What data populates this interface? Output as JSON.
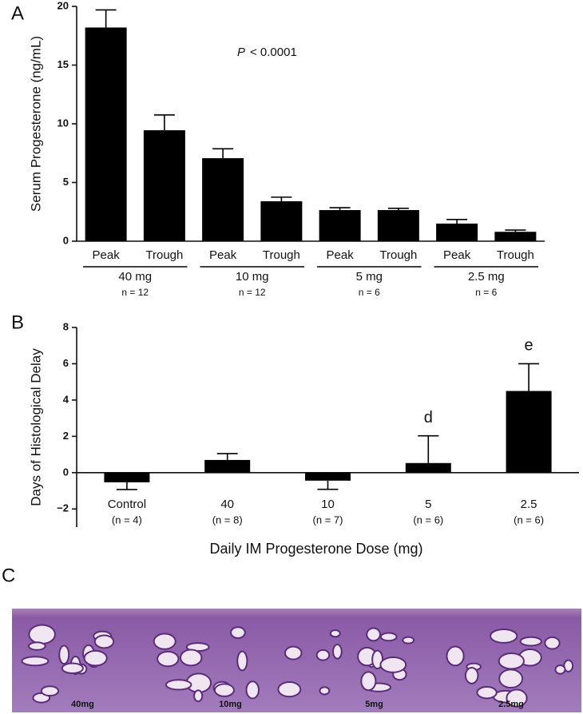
{
  "chart_data": [
    {
      "type": "bar",
      "panel_label": "A",
      "ylabel": "Serum Progesterone (ng/mL)",
      "annotation_italic": "P",
      "annotation": "< 0.0001",
      "categories": [
        "Peak",
        "Trough",
        "Peak",
        "Trough",
        "Peak",
        "Trough",
        "Peak",
        "Trough"
      ],
      "groups": [
        {
          "label": "40 mg",
          "n": "n = 12"
        },
        {
          "label": "10 mg",
          "n": "n = 12"
        },
        {
          "label": "5 mg",
          "n": "n = 6"
        },
        {
          "label": "2.5 mg",
          "n": "n = 6"
        }
      ],
      "values": [
        18.2,
        9.45,
        7.07,
        3.4,
        2.65,
        2.65,
        1.5,
        0.8
      ],
      "errors": [
        1.5,
        1.3,
        0.8,
        0.35,
        0.2,
        0.15,
        0.35,
        0.15
      ],
      "color": "#000000",
      "ylim": [
        0,
        20
      ],
      "yticks": [
        0,
        5,
        10,
        15,
        20
      ]
    },
    {
      "type": "bar",
      "panel_label": "B",
      "ylabel": "Days of Histological Delay",
      "xlabel": "Daily IM Progesterone Dose (mg)",
      "categories": [
        "Control",
        "40",
        "10",
        "5",
        "2.5"
      ],
      "category_n": [
        "(n = 4)",
        "(n = 8)",
        "(n = 7)",
        "(n = 6)",
        "(n = 6)"
      ],
      "values": [
        -0.53,
        0.7,
        -0.44,
        0.53,
        4.5
      ],
      "errors": [
        0.4,
        0.35,
        0.48,
        1.5,
        1.5
      ],
      "bar_annotations": [
        null,
        null,
        null,
        "d",
        "e"
      ],
      "color": "#000000",
      "ylim": [
        -3,
        8
      ],
      "yticks": [
        {
          "value": -2,
          "label": "−2"
        },
        0,
        2,
        4,
        6,
        8
      ]
    }
  ],
  "images": {
    "panel_label": "C",
    "labels": [
      "40mg",
      "10mg",
      "5mg",
      "2.5mg"
    ]
  }
}
